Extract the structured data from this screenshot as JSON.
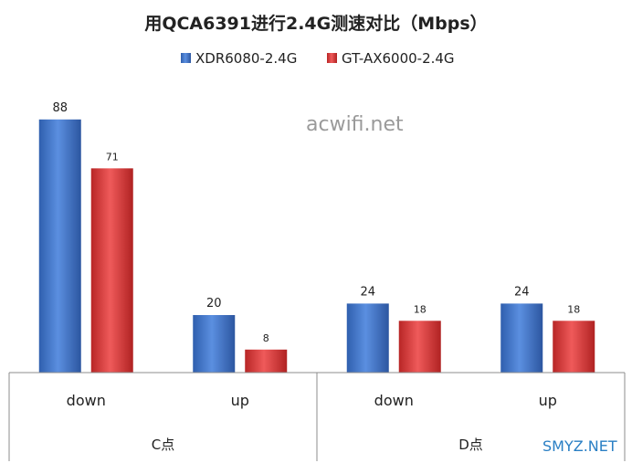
{
  "chart_data": {
    "type": "bar",
    "title": "用QCA6391进行2.4G测速对比（Mbps）",
    "groups": [
      "C点",
      "D点"
    ],
    "categories": [
      "down",
      "up",
      "down",
      "up"
    ],
    "series": [
      {
        "name": "XDR6080-2.4G",
        "values": [
          88,
          20,
          24,
          24
        ],
        "color": "#3a6fc4"
      },
      {
        "name": "GT-AX6000-2.4G",
        "values": [
          71,
          8,
          18,
          18
        ],
        "color": "#d63a3a"
      }
    ],
    "ylim": [
      0,
      100
    ],
    "grid": false,
    "legend_position": "top"
  },
  "watermarks": {
    "center": "acwifi.net",
    "corner": "SMYZ.NET"
  }
}
